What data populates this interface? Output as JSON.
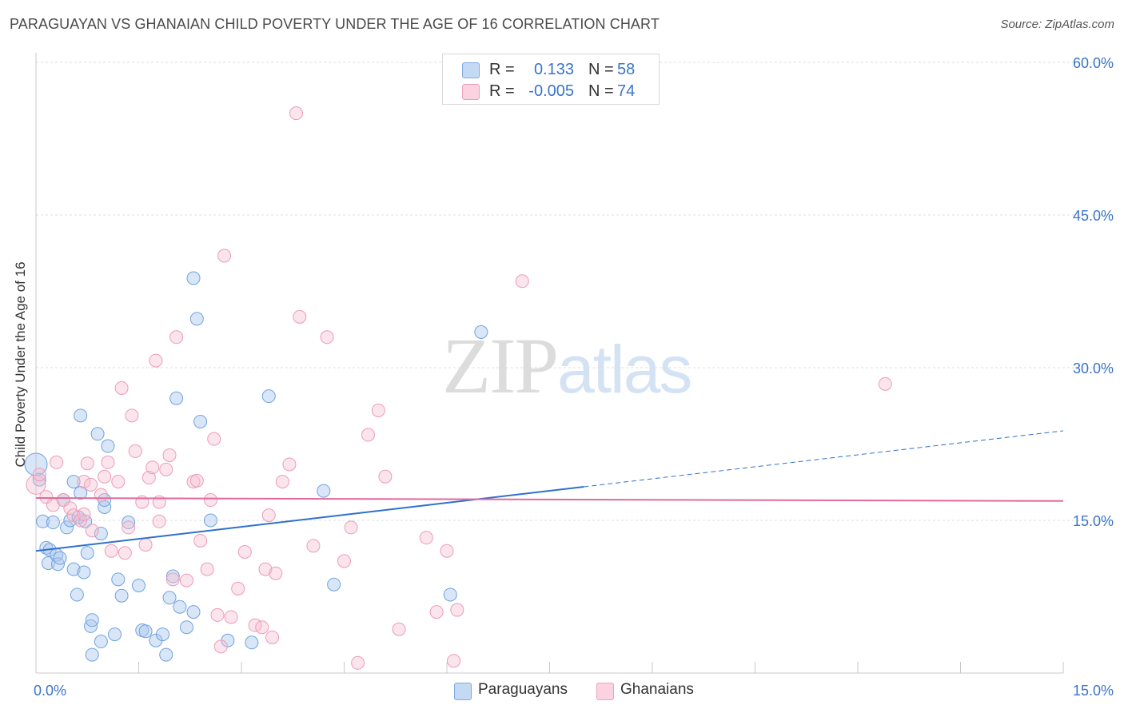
{
  "title": "PARAGUAYAN VS GHANAIAN CHILD POVERTY UNDER THE AGE OF 16 CORRELATION CHART",
  "source": "Source: ZipAtlas.com",
  "watermark": {
    "zip": "ZIP",
    "atlas": "atlas"
  },
  "legend_top": {
    "rows": [
      {
        "r_label": "R =",
        "r_value": "0.133",
        "n_label": "N =",
        "n_value": "58",
        "color": "#aac8ee"
      },
      {
        "r_label": "R =",
        "r_value": "-0.005",
        "n_label": "N =",
        "n_value": "74",
        "color": "#f6bdd0"
      }
    ]
  },
  "legend_bottom": [
    {
      "label": "Paraguayans",
      "color": "#aac8ee"
    },
    {
      "label": "Ghanaians",
      "color": "#f6bdd0"
    }
  ],
  "chart_data": {
    "type": "scatter",
    "title": "PARAGUAYAN VS GHANAIAN CHILD POVERTY UNDER THE AGE OF 16 CORRELATION CHART",
    "ylabel": "Child Poverty Under the Age of 16",
    "xlim": [
      0,
      15
    ],
    "ylim": [
      0,
      60
    ],
    "x_tick_labels": [
      {
        "v": 0,
        "label": "0.0%"
      },
      {
        "v": 15,
        "label": "15.0%"
      }
    ],
    "y_tick_labels": [
      {
        "v": 15,
        "label": "15.0%"
      },
      {
        "v": 30,
        "label": "30.0%"
      },
      {
        "v": 45,
        "label": "45.0%"
      },
      {
        "v": 60,
        "label": "60.0%"
      }
    ],
    "grid": true,
    "series": [
      {
        "name": "Paraguayans",
        "color": "#6fa3e0",
        "trend": {
          "x": [
            0,
            8.0
          ],
          "y": [
            12.0,
            18.3
          ],
          "dashed_to": [
            15.0,
            23.8
          ],
          "color": "#2f70cf"
        },
        "points": [
          [
            0.0,
            20.5
          ],
          [
            0.05,
            19.0
          ],
          [
            0.1,
            14.9
          ],
          [
            0.15,
            12.3
          ],
          [
            0.2,
            12.1
          ],
          [
            0.18,
            10.8
          ],
          [
            0.25,
            14.8
          ],
          [
            0.3,
            11.6
          ],
          [
            0.32,
            10.7
          ],
          [
            0.35,
            11.3
          ],
          [
            0.4,
            17.0
          ],
          [
            0.45,
            14.3
          ],
          [
            0.5,
            15.0
          ],
          [
            0.55,
            18.8
          ],
          [
            0.55,
            10.2
          ],
          [
            0.6,
            7.7
          ],
          [
            0.62,
            15.3
          ],
          [
            0.65,
            17.7
          ],
          [
            0.65,
            25.3
          ],
          [
            0.7,
            9.9
          ],
          [
            0.72,
            14.9
          ],
          [
            0.75,
            11.8
          ],
          [
            0.8,
            4.6
          ],
          [
            0.82,
            5.2
          ],
          [
            0.82,
            1.8
          ],
          [
            0.9,
            23.5
          ],
          [
            0.95,
            13.7
          ],
          [
            0.95,
            3.1
          ],
          [
            1.0,
            16.3
          ],
          [
            1.0,
            17.0
          ],
          [
            1.05,
            22.3
          ],
          [
            1.15,
            3.8
          ],
          [
            1.2,
            9.2
          ],
          [
            1.25,
            7.6
          ],
          [
            1.35,
            14.8
          ],
          [
            1.5,
            8.6
          ],
          [
            1.55,
            4.2
          ],
          [
            1.6,
            4.1
          ],
          [
            1.75,
            3.2
          ],
          [
            1.85,
            3.8
          ],
          [
            1.9,
            1.8
          ],
          [
            1.95,
            7.4
          ],
          [
            2.0,
            9.5
          ],
          [
            2.05,
            27.0
          ],
          [
            2.1,
            6.5
          ],
          [
            2.2,
            4.5
          ],
          [
            2.3,
            6.0
          ],
          [
            2.3,
            38.8
          ],
          [
            2.35,
            34.8
          ],
          [
            2.4,
            24.7
          ],
          [
            2.55,
            15.0
          ],
          [
            2.8,
            3.2
          ],
          [
            3.15,
            3.0
          ],
          [
            3.4,
            27.2
          ],
          [
            4.2,
            17.9
          ],
          [
            4.35,
            8.7
          ],
          [
            6.5,
            33.5
          ],
          [
            6.05,
            7.7
          ]
        ]
      },
      {
        "name": "Ghanaians",
        "color": "#ee9ab7",
        "trend": {
          "x": [
            0,
            15.0
          ],
          "y": [
            17.2,
            16.9
          ],
          "color": "#e2699a"
        },
        "points": [
          [
            0.0,
            18.5
          ],
          [
            0.05,
            19.5
          ],
          [
            0.15,
            17.3
          ],
          [
            0.25,
            16.5
          ],
          [
            0.3,
            20.7
          ],
          [
            0.4,
            17.0
          ],
          [
            0.5,
            16.2
          ],
          [
            0.55,
            15.5
          ],
          [
            0.65,
            15.0
          ],
          [
            0.7,
            18.8
          ],
          [
            0.7,
            15.6
          ],
          [
            0.75,
            20.6
          ],
          [
            0.8,
            18.5
          ],
          [
            0.82,
            14.0
          ],
          [
            0.95,
            17.5
          ],
          [
            1.0,
            19.3
          ],
          [
            1.05,
            20.7
          ],
          [
            1.1,
            12.0
          ],
          [
            1.2,
            18.8
          ],
          [
            1.25,
            28.0
          ],
          [
            1.3,
            11.8
          ],
          [
            1.35,
            14.3
          ],
          [
            1.4,
            25.3
          ],
          [
            1.45,
            21.8
          ],
          [
            1.55,
            16.8
          ],
          [
            1.6,
            12.6
          ],
          [
            1.65,
            19.2
          ],
          [
            1.7,
            20.2
          ],
          [
            1.75,
            30.7
          ],
          [
            1.8,
            14.9
          ],
          [
            1.8,
            16.8
          ],
          [
            1.9,
            20.0
          ],
          [
            1.95,
            21.4
          ],
          [
            2.0,
            9.2
          ],
          [
            2.05,
            33.0
          ],
          [
            2.2,
            9.1
          ],
          [
            2.3,
            18.8
          ],
          [
            2.35,
            18.9
          ],
          [
            2.4,
            13.0
          ],
          [
            2.5,
            10.2
          ],
          [
            2.55,
            17.0
          ],
          [
            2.6,
            23.0
          ],
          [
            2.65,
            5.7
          ],
          [
            2.7,
            2.6
          ],
          [
            2.75,
            41.0
          ],
          [
            2.85,
            5.5
          ],
          [
            2.95,
            8.3
          ],
          [
            3.05,
            11.9
          ],
          [
            3.2,
            4.7
          ],
          [
            3.3,
            4.5
          ],
          [
            3.35,
            10.2
          ],
          [
            3.4,
            15.5
          ],
          [
            3.45,
            3.5
          ],
          [
            3.5,
            9.8
          ],
          [
            3.6,
            18.8
          ],
          [
            3.7,
            20.5
          ],
          [
            3.8,
            55.0
          ],
          [
            3.85,
            35.0
          ],
          [
            4.05,
            12.5
          ],
          [
            4.25,
            33.0
          ],
          [
            4.5,
            11.0
          ],
          [
            4.6,
            14.3
          ],
          [
            4.7,
            1.0
          ],
          [
            4.85,
            23.4
          ],
          [
            5.0,
            25.8
          ],
          [
            5.1,
            19.3
          ],
          [
            5.3,
            4.3
          ],
          [
            5.7,
            13.3
          ],
          [
            5.85,
            6.0
          ],
          [
            6.0,
            12.0
          ],
          [
            6.1,
            1.2
          ],
          [
            6.15,
            6.2
          ],
          [
            7.1,
            38.5
          ],
          [
            12.4,
            28.4
          ]
        ]
      }
    ]
  }
}
